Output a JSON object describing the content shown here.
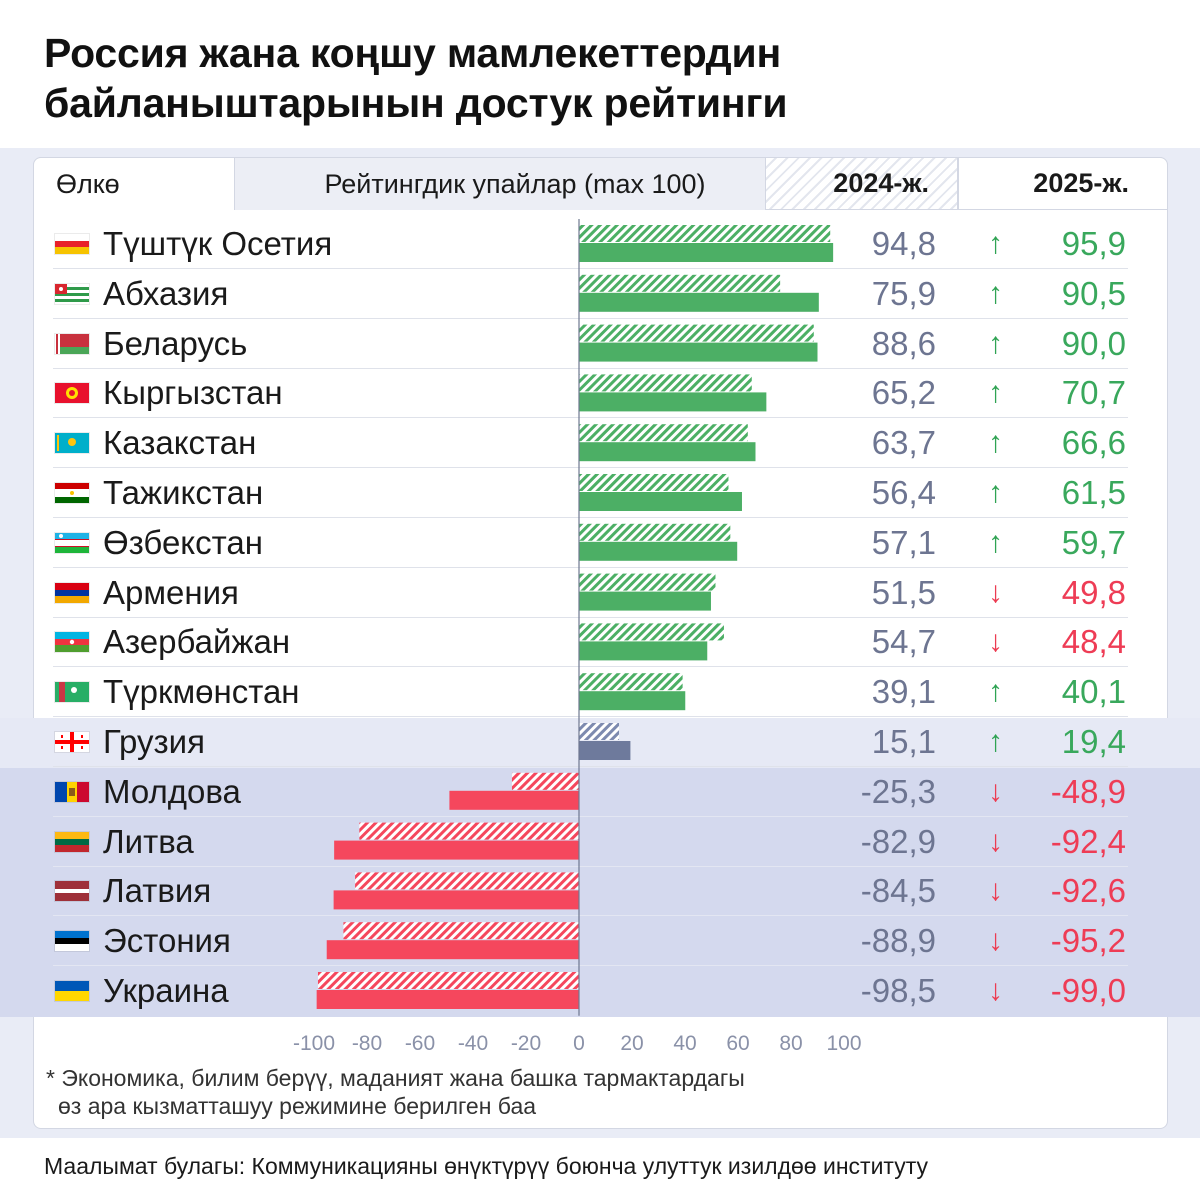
{
  "title_lines": [
    "Россия жана коңшу мамлекеттердин",
    "байланыштарынын достук рейтинги"
  ],
  "header": {
    "country": "Өлкө",
    "rating": "Рейтингдик упайлар (max 100)",
    "year2024": "2024-ж.",
    "year2025": "2025-ж."
  },
  "footnote_lines": [
    "* Экономика, билим берүү, маданият жана башка тармактардагы",
    "өз ара кызматташуу режимине берилген баа"
  ],
  "source": "Маалымат булагы: Коммуникацияны өнүктүрүү боюнча улуттук изилдөө институту",
  "colors": {
    "positive": "#4caf65",
    "georgia": "#6e7a9c",
    "negative": "#f5475d",
    "up": "#2fa353",
    "down": "#ec3c52"
  },
  "chart_data": {
    "type": "bar",
    "orientation": "horizontal",
    "categories": [
      "Түштүк Осетия",
      "Абхазия",
      "Беларусь",
      "Кыргызстан",
      "Казакстан",
      "Тажикстан",
      "Өзбекстан",
      "Армения",
      "Азербайжан",
      "Түркмөнстан",
      "Грузия",
      "Молдова",
      "Литва",
      "Латвия",
      "Эстония",
      "Украина"
    ],
    "series": [
      {
        "name": "2024-ж.",
        "values": [
          94.8,
          75.9,
          88.6,
          65.2,
          63.7,
          56.4,
          57.1,
          51.5,
          54.7,
          39.1,
          15.1,
          -25.3,
          -82.9,
          -84.5,
          -88.9,
          -98.5
        ]
      },
      {
        "name": "2025-ж.",
        "values": [
          95.9,
          90.5,
          90.0,
          70.7,
          66.6,
          61.5,
          59.7,
          49.8,
          48.4,
          40.1,
          19.4,
          -48.9,
          -92.4,
          -92.6,
          -95.2,
          -99.0
        ]
      }
    ],
    "labels_2024": [
      "94,8",
      "75,9",
      "88,6",
      "65,2",
      "63,7",
      "56,4",
      "57,1",
      "51,5",
      "54,7",
      "39,1",
      "15,1",
      "-25,3",
      "-82,9",
      "-84,5",
      "-88,9",
      "-98,5"
    ],
    "labels_2025": [
      "95,9",
      "90,5",
      "90,0",
      "70,7",
      "66,6",
      "61,5",
      "59,7",
      "49,8",
      "48,4",
      "40,1",
      "19,4",
      "-48,9",
      "-92,4",
      "-92,6",
      "-95,2",
      "-99,0"
    ],
    "change": [
      "up",
      "up",
      "up",
      "up",
      "up",
      "up",
      "up",
      "down",
      "down",
      "up",
      "up",
      "down",
      "down",
      "down",
      "down",
      "down"
    ],
    "arrow_up": "↑",
    "arrow_down": "↓",
    "xlim": [
      -100,
      100
    ],
    "xticks": [
      -100,
      -80,
      -60,
      -40,
      -20,
      0,
      20,
      40,
      60,
      80,
      100
    ],
    "xtick_labels": [
      "-100",
      "-80",
      "-60",
      "-40",
      "-20",
      "0",
      "20",
      "40",
      "60",
      "80",
      "100"
    ],
    "legend": "header",
    "grid": false
  }
}
